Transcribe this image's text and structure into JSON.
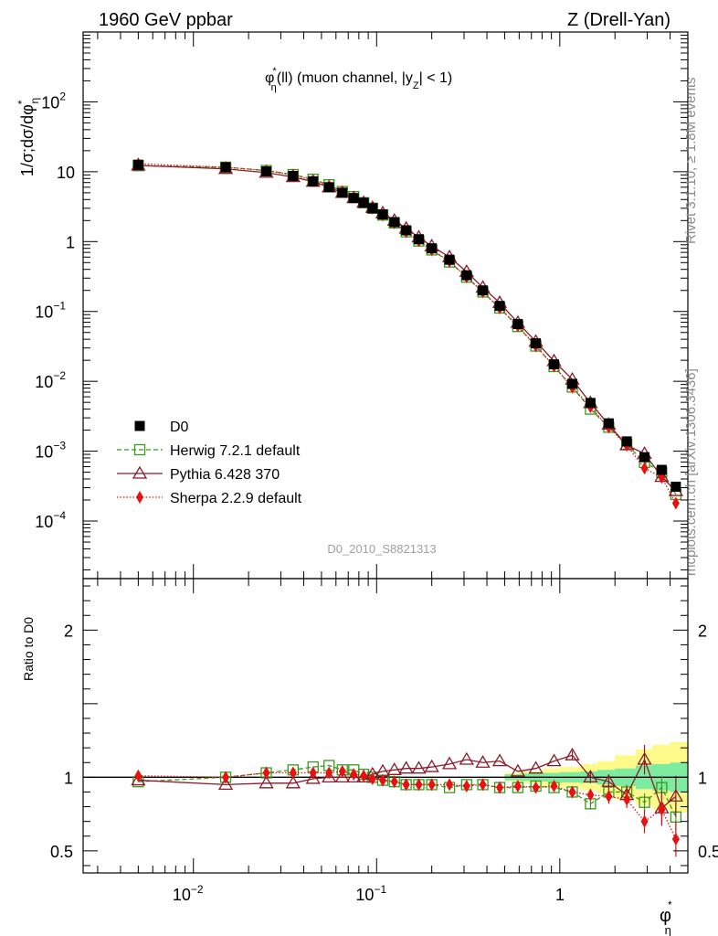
{
  "header": {
    "left": "1960 GeV ppbar",
    "right": "Z (Drell-Yan)"
  },
  "side_labels": {
    "rivet": "Rivet 3.1.10, ≥ 1.8M events",
    "mcplots": "mcplots.cern.ch [arXiv:1306.3436]"
  },
  "chart_data": {
    "type": "line",
    "title": "φ*η(ll) (muon channel, |yZ| < 1)",
    "title_parts": {
      "phi": "φ",
      "sup": "*",
      "sub": "η",
      "rest1": "(ll) (muon channel, |",
      "y": "y",
      "ysub": "Z",
      "rest2": "| < 1)"
    },
    "watermark": "D0_2010_S8821313",
    "xscale": "log",
    "xlim": [
      0.0025,
      5.0
    ],
    "xticks": [
      {
        "value": 0.01,
        "label": "10",
        "exp": "−2"
      },
      {
        "value": 0.1,
        "label": "10",
        "exp": "−1"
      },
      {
        "value": 1,
        "label": "1",
        "exp": ""
      }
    ],
    "xlabel": {
      "main": "φ",
      "sup": "*",
      "sub": "η"
    },
    "top_panel": {
      "yscale": "log",
      "ylim": [
        1.5e-05,
        1000
      ],
      "ylabel": "1/σ;dσ/dφ*η",
      "yticks": [
        {
          "value": 0.0001,
          "label": "10",
          "exp": "−4"
        },
        {
          "value": 0.001,
          "label": "10",
          "exp": "−3"
        },
        {
          "value": 0.01,
          "label": "10",
          "exp": "−2"
        },
        {
          "value": 0.1,
          "label": "10",
          "exp": "−1"
        },
        {
          "value": 1,
          "label": "1",
          "exp": ""
        },
        {
          "value": 10,
          "label": "10",
          "exp": ""
        },
        {
          "value": 100,
          "label": "10",
          "exp": "2"
        }
      ],
      "legend_position": "lower-left",
      "x": [
        0.005,
        0.015,
        0.025,
        0.035,
        0.045,
        0.055,
        0.065,
        0.075,
        0.085,
        0.095,
        0.108,
        0.125,
        0.145,
        0.17,
        0.2,
        0.25,
        0.31,
        0.38,
        0.47,
        0.59,
        0.74,
        0.93,
        1.17,
        1.47,
        1.85,
        2.32,
        2.9,
        3.6,
        4.3
      ],
      "series": [
        {
          "name": "D0",
          "color": "#000000",
          "marker": "filled-square",
          "style": "none",
          "values": [
            12.6,
            11.6,
            10.1,
            8.7,
            7.3,
            6.0,
            5.0,
            4.2,
            3.6,
            3.0,
            2.45,
            1.9,
            1.45,
            1.08,
            0.8,
            0.55,
            0.33,
            0.2,
            0.12,
            0.066,
            0.035,
            0.0175,
            0.0092,
            0.0049,
            0.0025,
            0.00138,
            0.00082,
            0.00054,
            0.00031
          ]
        },
        {
          "name": "Herwig 7.2.1 default",
          "color": "#3a9a1c",
          "marker": "open-square",
          "style": "dashed",
          "values": [
            12.2,
            11.6,
            10.4,
            9.1,
            7.8,
            6.5,
            5.2,
            4.4,
            3.6,
            3.0,
            2.4,
            1.85,
            1.38,
            1.02,
            0.76,
            0.51,
            0.31,
            0.19,
            0.112,
            0.061,
            0.032,
            0.0163,
            0.0083,
            0.004,
            0.0022,
            0.00125,
            0.00069,
            0.0005,
            0.00024
          ]
        },
        {
          "name": "Pythia 6.428 370",
          "color": "#8b1a2a",
          "marker": "open-triangle",
          "style": "solid",
          "values": [
            12.3,
            11.0,
            9.7,
            8.4,
            7.2,
            6.0,
            5.0,
            4.2,
            3.6,
            3.05,
            2.55,
            2.0,
            1.54,
            1.15,
            0.86,
            0.6,
            0.37,
            0.22,
            0.133,
            0.069,
            0.037,
            0.0195,
            0.0106,
            0.0049,
            0.0024,
            0.00122,
            0.00092,
            0.00043,
            0.00027
          ]
        },
        {
          "name": "Sherpa 2.2.9 default",
          "color": "#e81010",
          "marker": "filled-diamond",
          "style": "dotted",
          "values": [
            13.0,
            11.6,
            10.4,
            9.0,
            7.5,
            6.2,
            5.2,
            4.3,
            3.65,
            3.0,
            2.4,
            1.85,
            1.38,
            1.02,
            0.76,
            0.52,
            0.31,
            0.19,
            0.112,
            0.062,
            0.032,
            0.0165,
            0.0082,
            0.0043,
            0.0022,
            0.00121,
            0.00057,
            0.00042,
            0.00018
          ]
        }
      ]
    },
    "ratio_panel": {
      "ylabel": "Ratio to D0",
      "ylim": [
        0.35,
        2.35
      ],
      "yticks": [
        {
          "value": 0.5,
          "label": "0.5"
        },
        {
          "value": 1,
          "label": "1"
        },
        {
          "value": 2,
          "label": "2"
        }
      ],
      "band_colors": {
        "inner": "#7deba0",
        "outer": "#fffb8a"
      },
      "band_x": [
        0.5,
        0.6,
        0.8,
        1.0,
        1.3,
        1.6,
        2.0,
        2.6,
        3.2,
        4.0,
        5.0
      ],
      "band_inner": [
        0.02,
        0.025,
        0.03,
        0.035,
        0.04,
        0.05,
        0.06,
        0.08,
        0.09,
        0.1,
        0.1
      ],
      "band_outer": [
        0.03,
        0.04,
        0.06,
        0.07,
        0.09,
        0.11,
        0.15,
        0.19,
        0.22,
        0.24,
        0.25
      ],
      "series": [
        {
          "name": "Herwig 7.2.1 default",
          "color": "#3a9a1c",
          "marker": "open-square",
          "style": "dashed",
          "values": [
            0.97,
            1.0,
            1.03,
            1.05,
            1.07,
            1.08,
            1.05,
            1.05,
            1.02,
            1.0,
            0.98,
            0.97,
            0.95,
            0.95,
            0.95,
            0.93,
            0.95,
            0.95,
            0.93,
            0.93,
            0.94,
            0.93,
            0.9,
            0.82,
            0.9,
            0.9,
            0.83,
            0.93,
            0.73
          ],
          "err": [
            0,
            0,
            0,
            0,
            0,
            0,
            0,
            0,
            0,
            0,
            0,
            0,
            0,
            0,
            0,
            0,
            0,
            0,
            0,
            0,
            0,
            0,
            0.03,
            0.04,
            0.05,
            0.05,
            0.06,
            0.08,
            0.1
          ]
        },
        {
          "name": "Pythia 6.428 370",
          "color": "#8b1a2a",
          "marker": "open-triangle",
          "style": "solid",
          "values": [
            0.98,
            0.95,
            0.96,
            0.96,
            0.99,
            1.0,
            1.0,
            1.0,
            1.0,
            1.02,
            1.04,
            1.05,
            1.06,
            1.06,
            1.07,
            1.09,
            1.12,
            1.1,
            1.11,
            1.04,
            1.06,
            1.11,
            1.15,
            1.0,
            0.97,
            0.88,
            1.12,
            0.79,
            0.87
          ],
          "err": [
            0,
            0,
            0,
            0,
            0,
            0,
            0,
            0,
            0,
            0,
            0,
            0,
            0,
            0,
            0,
            0,
            0,
            0,
            0,
            0,
            0,
            0,
            0.03,
            0.04,
            0.05,
            0.06,
            0.1,
            0.12,
            0.14
          ]
        },
        {
          "name": "Sherpa 2.2.9 default",
          "color": "#e81010",
          "marker": "filled-diamond",
          "style": "dotted",
          "values": [
            1.01,
            1.0,
            1.03,
            1.03,
            1.03,
            1.03,
            1.04,
            1.02,
            1.01,
            0.99,
            0.98,
            0.97,
            0.95,
            0.95,
            0.95,
            0.95,
            0.94,
            0.95,
            0.93,
            0.94,
            0.93,
            0.94,
            0.9,
            0.88,
            0.87,
            0.85,
            0.7,
            0.78,
            0.58
          ],
          "err": [
            0,
            0,
            0,
            0,
            0,
            0,
            0,
            0,
            0,
            0,
            0,
            0,
            0,
            0,
            0,
            0,
            0,
            0,
            0,
            0,
            0,
            0,
            0.03,
            0.04,
            0.05,
            0.06,
            0.08,
            0.1,
            0.12
          ]
        }
      ]
    }
  }
}
